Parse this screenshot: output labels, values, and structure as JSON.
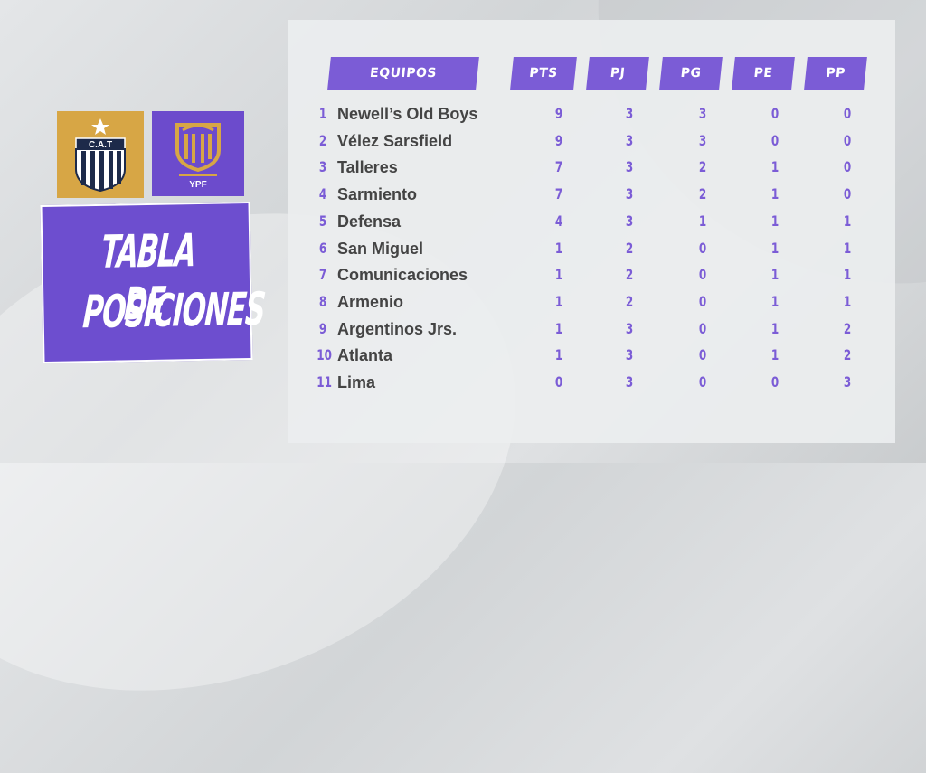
{
  "brand": {
    "cat_badge_text": "C.A.T",
    "ypf_badge_text": "YPF",
    "accent_color": "#7b5cd6",
    "gold_color": "#d7a645"
  },
  "title": {
    "line1": "TABLA DE",
    "line2": "POSICIONES"
  },
  "table": {
    "headers": {
      "team": "EQUIPOS",
      "pts": "PTS",
      "pj": "PJ",
      "pg": "PG",
      "pe": "PE",
      "pp": "PP"
    },
    "rows": [
      {
        "pos": "1",
        "team": "Newell’s Old Boys",
        "pts": "9",
        "pj": "3",
        "pg": "3",
        "pe": "0",
        "pp": "0"
      },
      {
        "pos": "2",
        "team": "Vélez Sarsfield",
        "pts": "9",
        "pj": "3",
        "pg": "3",
        "pe": "0",
        "pp": "0"
      },
      {
        "pos": "3",
        "team": "Talleres",
        "pts": "7",
        "pj": "3",
        "pg": "2",
        "pe": "1",
        "pp": "0"
      },
      {
        "pos": "4",
        "team": "Sarmiento",
        "pts": "7",
        "pj": "3",
        "pg": "2",
        "pe": "1",
        "pp": "0"
      },
      {
        "pos": "5",
        "team": "Defensa",
        "pts": "4",
        "pj": "3",
        "pg": "1",
        "pe": "1",
        "pp": "1"
      },
      {
        "pos": "6",
        "team": "San Miguel",
        "pts": "1",
        "pj": "2",
        "pg": "0",
        "pe": "1",
        "pp": "1"
      },
      {
        "pos": "7",
        "team": "Comunicaciones",
        "pts": "1",
        "pj": "2",
        "pg": "0",
        "pe": "1",
        "pp": "1"
      },
      {
        "pos": "8",
        "team": "Armenio",
        "pts": "1",
        "pj": "2",
        "pg": "0",
        "pe": "1",
        "pp": "1"
      },
      {
        "pos": "9",
        "team": "Argentinos Jrs.",
        "pts": "1",
        "pj": "3",
        "pg": "0",
        "pe": "1",
        "pp": "2"
      },
      {
        "pos": "10",
        "team": "Atlanta",
        "pts": "1",
        "pj": "3",
        "pg": "0",
        "pe": "1",
        "pp": "2"
      },
      {
        "pos": "11",
        "team": "Lima",
        "pts": "0",
        "pj": "3",
        "pg": "0",
        "pe": "0",
        "pp": "3"
      }
    ]
  }
}
